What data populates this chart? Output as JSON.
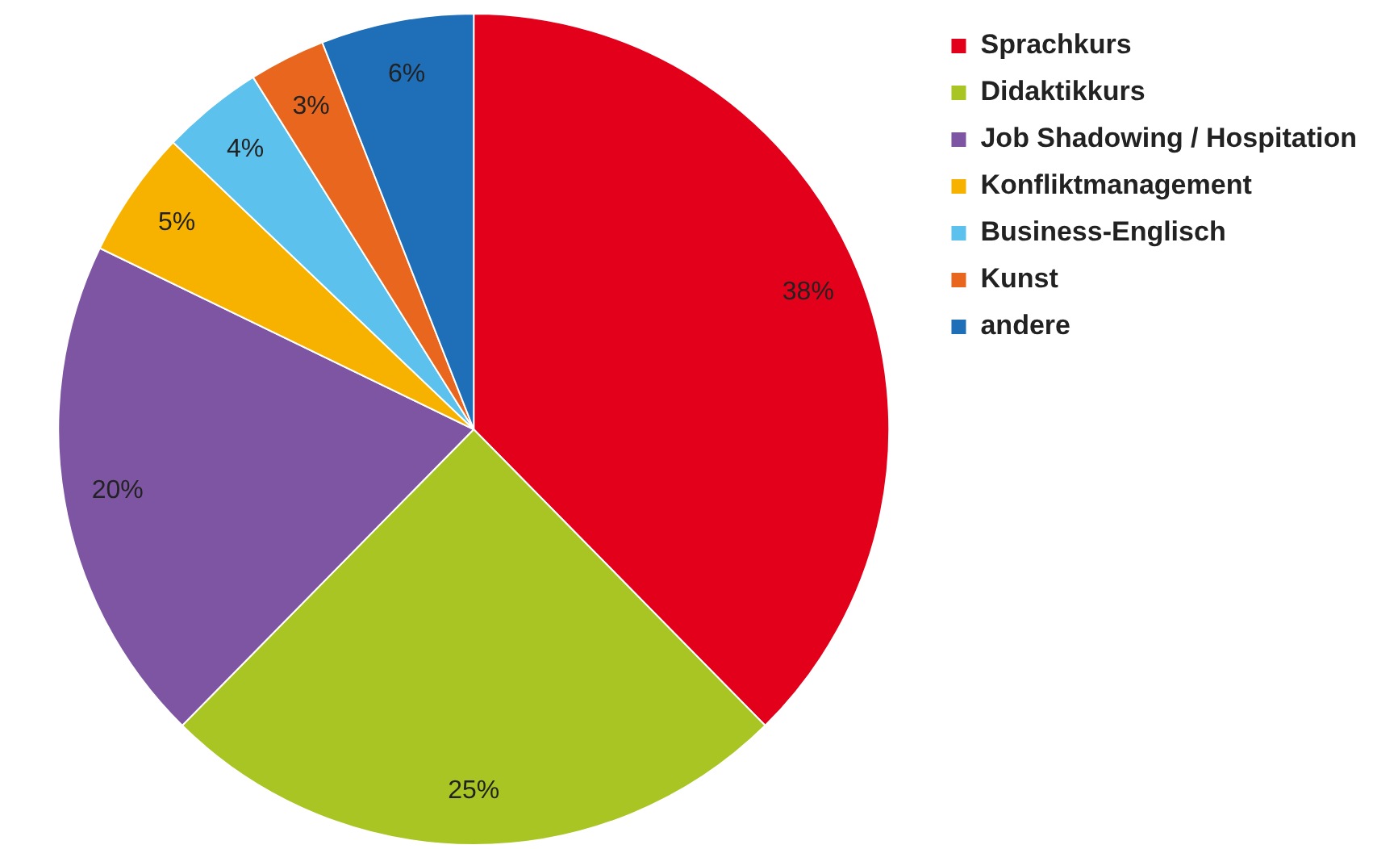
{
  "chart_data": {
    "type": "pie",
    "categories": [
      "Sprachkurs",
      "Didaktikkurs",
      "Job Shadowing / Hospitation",
      "Konfliktmanagement",
      "Business-Englisch",
      "Kunst",
      "andere"
    ],
    "values": [
      38,
      25,
      20,
      5,
      4,
      3,
      6
    ],
    "colors": [
      "#e2001a",
      "#a9c523",
      "#7e55a3",
      "#f7b200",
      "#5cc1ec",
      "#e8661e",
      "#1e6eb8"
    ],
    "value_labels": [
      "38%",
      "25%",
      "20%",
      "5%",
      "4%",
      "3%",
      "6%"
    ],
    "legend": "top right"
  }
}
